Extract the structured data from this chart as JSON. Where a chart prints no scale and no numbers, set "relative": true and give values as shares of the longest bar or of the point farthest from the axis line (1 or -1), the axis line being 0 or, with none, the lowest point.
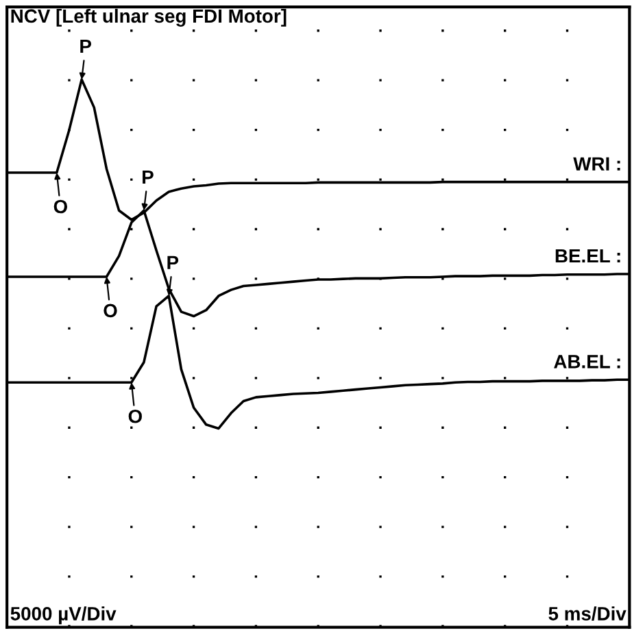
{
  "chart_data": {
    "type": "line",
    "title": "NCV [Left ulnar seg FDI Motor]",
    "relative": true,
    "categories": [
      null,
      null,
      null,
      null,
      null,
      null,
      null,
      null,
      null,
      null,
      null,
      null,
      null,
      null,
      null,
      null,
      null,
      null,
      null,
      null,
      null,
      null,
      null,
      null,
      null,
      null,
      null,
      null,
      null,
      null,
      null,
      null,
      null,
      null,
      null,
      null,
      null,
      null,
      null,
      null,
      null,
      null,
      null,
      null,
      null,
      null,
      null,
      null,
      null,
      null,
      null
    ],
    "grid": true,
    "legend": false,
    "marker": "none",
    "line_style": "solid",
    "series": [
      {
        "name": "WRI :",
        "color": "#000000",
        "values": [
          0.83,
          0.83,
          0.83,
          0.83,
          0.83,
          0.908,
          1.0,
          0.949,
          0.837,
          0.761,
          0.744,
          0.757,
          0.779,
          0.795,
          0.801,
          0.805,
          0.807,
          0.81,
          0.811,
          0.811,
          0.811,
          0.811,
          0.811,
          0.811,
          0.811,
          0.812,
          0.812,
          0.812,
          0.812,
          0.812,
          0.812,
          0.812,
          0.812,
          0.812,
          0.812,
          0.813,
          0.813,
          0.813,
          0.813,
          0.813,
          0.813,
          0.813,
          0.813,
          0.813,
          0.813,
          0.813,
          0.813,
          0.813,
          0.813,
          0.813,
          0.813
        ]
      },
      {
        "name": "BE.EL :",
        "color": "#000000",
        "values": [
          0.64,
          0.64,
          0.64,
          0.64,
          0.64,
          0.64,
          0.64,
          0.64,
          0.64,
          0.678,
          0.739,
          0.761,
          0.688,
          0.618,
          0.576,
          0.568,
          0.579,
          0.605,
          0.616,
          0.623,
          0.625,
          0.627,
          0.629,
          0.631,
          0.633,
          0.635,
          0.635,
          0.636,
          0.637,
          0.637,
          0.637,
          0.638,
          0.639,
          0.639,
          0.639,
          0.64,
          0.641,
          0.641,
          0.641,
          0.642,
          0.642,
          0.642,
          0.642,
          0.643,
          0.643,
          0.644,
          0.644,
          0.644,
          0.644,
          0.645,
          0.645
        ]
      },
      {
        "name": "AB.EL :",
        "color": "#000000",
        "values": [
          0.447,
          0.447,
          0.447,
          0.447,
          0.447,
          0.447,
          0.447,
          0.447,
          0.447,
          0.447,
          0.447,
          0.484,
          0.586,
          0.605,
          0.471,
          0.401,
          0.37,
          0.363,
          0.391,
          0.413,
          0.42,
          0.422,
          0.424,
          0.426,
          0.427,
          0.428,
          0.43,
          0.432,
          0.434,
          0.436,
          0.438,
          0.44,
          0.442,
          0.443,
          0.444,
          0.445,
          0.447,
          0.448,
          0.448,
          0.449,
          0.449,
          0.449,
          0.449,
          0.45,
          0.45,
          0.45,
          0.45,
          0.451,
          0.451,
          0.452,
          0.452
        ]
      }
    ],
    "annotations": [
      "P",
      "O",
      "P",
      "O",
      "P",
      "O",
      "5000 µV/Div",
      "5 ms/Div"
    ]
  }
}
